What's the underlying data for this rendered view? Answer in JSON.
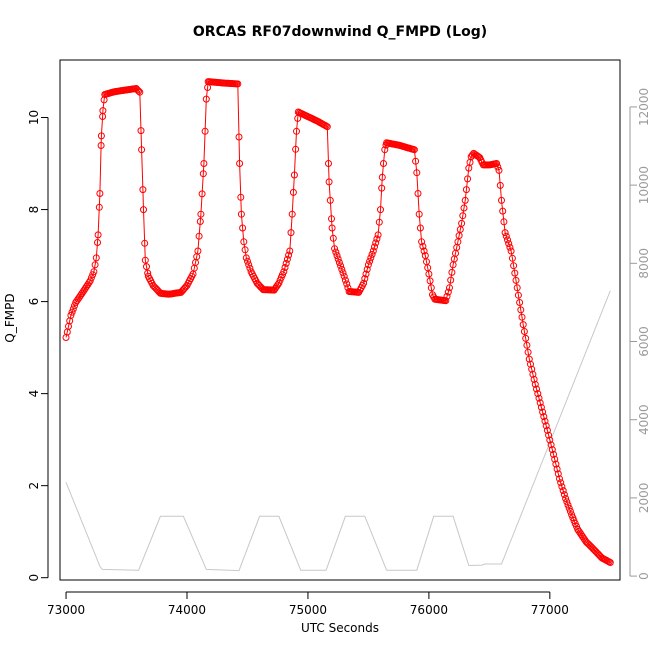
{
  "chart_data": {
    "type": "line",
    "title": "ORCAS RF07downwind Q_FMPD (Log)",
    "xlabel": "UTC Seconds",
    "ylabel": "Q_FMPD",
    "xlim": [
      72950,
      77580
    ],
    "ylim": [
      -0.05,
      11.25
    ],
    "y2lim": [
      -100,
      13200
    ],
    "x_ticks": [
      73000,
      74000,
      75000,
      76000,
      77000
    ],
    "y_ticks": [
      0,
      2,
      4,
      6,
      8,
      10
    ],
    "y2_ticks": [
      0,
      2000,
      4000,
      6000,
      8000,
      10000,
      12000
    ],
    "grid": false,
    "legend": "none",
    "colors": {
      "q_fmpd": "#ff0000",
      "secondary": "#c8c8c8",
      "right_axis": "#9a9a9a"
    },
    "series": [
      {
        "name": "Q_FMPD",
        "axis": "left",
        "style": "line+open-circles",
        "keypoints": [
          [
            73000,
            5.22
          ],
          [
            73040,
            5.7
          ],
          [
            73080,
            5.98
          ],
          [
            73150,
            6.25
          ],
          [
            73200,
            6.45
          ],
          [
            73230,
            6.65
          ],
          [
            73250,
            6.95
          ],
          [
            73265,
            7.45
          ],
          [
            73280,
            8.35
          ],
          [
            73292,
            9.6
          ],
          [
            73305,
            10.15
          ],
          [
            73320,
            10.5
          ],
          [
            73400,
            10.56
          ],
          [
            73500,
            10.6
          ],
          [
            73580,
            10.63
          ],
          [
            73610,
            10.55
          ],
          [
            73625,
            9.3
          ],
          [
            73640,
            8.0
          ],
          [
            73655,
            6.9
          ],
          [
            73680,
            6.55
          ],
          [
            73720,
            6.35
          ],
          [
            73780,
            6.18
          ],
          [
            73850,
            6.16
          ],
          [
            73950,
            6.2
          ],
          [
            74000,
            6.35
          ],
          [
            74050,
            6.6
          ],
          [
            74090,
            7.1
          ],
          [
            74115,
            7.9
          ],
          [
            74140,
            9.0
          ],
          [
            74160,
            10.4
          ],
          [
            74175,
            10.78
          ],
          [
            74300,
            10.75
          ],
          [
            74420,
            10.73
          ],
          [
            74435,
            9.0
          ],
          [
            74450,
            7.9
          ],
          [
            74470,
            7.3
          ],
          [
            74490,
            6.95
          ],
          [
            74530,
            6.65
          ],
          [
            74580,
            6.4
          ],
          [
            74630,
            6.26
          ],
          [
            74720,
            6.25
          ],
          [
            74760,
            6.4
          ],
          [
            74800,
            6.65
          ],
          [
            74850,
            7.1
          ],
          [
            74870,
            7.9
          ],
          [
            74888,
            8.75
          ],
          [
            74905,
            9.7
          ],
          [
            74920,
            10.12
          ],
          [
            75000,
            10.02
          ],
          [
            75080,
            9.92
          ],
          [
            75160,
            9.8
          ],
          [
            75175,
            8.6
          ],
          [
            75200,
            7.6
          ],
          [
            75220,
            7.15
          ],
          [
            75260,
            6.85
          ],
          [
            75300,
            6.55
          ],
          [
            75340,
            6.22
          ],
          [
            75420,
            6.2
          ],
          [
            75460,
            6.4
          ],
          [
            75500,
            6.8
          ],
          [
            75540,
            7.1
          ],
          [
            75580,
            7.45
          ],
          [
            75600,
            8.0
          ],
          [
            75615,
            8.7
          ],
          [
            75635,
            9.3
          ],
          [
            75650,
            9.45
          ],
          [
            75750,
            9.4
          ],
          [
            75880,
            9.3
          ],
          [
            75900,
            8.8
          ],
          [
            75920,
            7.9
          ],
          [
            75940,
            7.3
          ],
          [
            75970,
            7.0
          ],
          [
            76000,
            6.6
          ],
          [
            76030,
            6.15
          ],
          [
            76050,
            6.05
          ],
          [
            76140,
            6.02
          ],
          [
            76170,
            6.3
          ],
          [
            76200,
            6.8
          ],
          [
            76240,
            7.3
          ],
          [
            76270,
            7.7
          ],
          [
            76300,
            8.2
          ],
          [
            76330,
            8.9
          ],
          [
            76350,
            9.15
          ],
          [
            76370,
            9.22
          ],
          [
            76420,
            9.13
          ],
          [
            76450,
            8.97
          ],
          [
            76500,
            8.97
          ],
          [
            76560,
            9.0
          ],
          [
            76580,
            8.85
          ],
          [
            76600,
            8.2
          ],
          [
            76630,
            7.5
          ],
          [
            76680,
            7.1
          ],
          [
            76730,
            6.3
          ],
          [
            76780,
            5.5
          ],
          [
            76830,
            4.75
          ],
          [
            76880,
            4.2
          ],
          [
            76930,
            3.7
          ],
          [
            76980,
            3.2
          ],
          [
            77030,
            2.68
          ],
          [
            77080,
            2.15
          ],
          [
            77130,
            1.72
          ],
          [
            77180,
            1.37
          ],
          [
            77230,
            1.05
          ],
          [
            77300,
            0.78
          ],
          [
            77380,
            0.57
          ],
          [
            77430,
            0.43
          ],
          [
            77500,
            0.33
          ]
        ]
      },
      {
        "name": "",
        "axis": "right",
        "style": "line",
        "points": [
          [
            73000,
            2400
          ],
          [
            73280,
            250
          ],
          [
            73300,
            170
          ],
          [
            73600,
            150
          ],
          [
            73780,
            1530
          ],
          [
            73970,
            1530
          ],
          [
            74160,
            170
          ],
          [
            74430,
            140
          ],
          [
            74600,
            1530
          ],
          [
            74760,
            1530
          ],
          [
            74940,
            150
          ],
          [
            75150,
            150
          ],
          [
            75310,
            1530
          ],
          [
            75470,
            1530
          ],
          [
            75650,
            150
          ],
          [
            75900,
            150
          ],
          [
            76040,
            1530
          ],
          [
            76200,
            1530
          ],
          [
            76330,
            270
          ],
          [
            76440,
            280
          ],
          [
            76460,
            310
          ],
          [
            76600,
            310
          ],
          [
            77500,
            7300
          ]
        ]
      }
    ]
  }
}
